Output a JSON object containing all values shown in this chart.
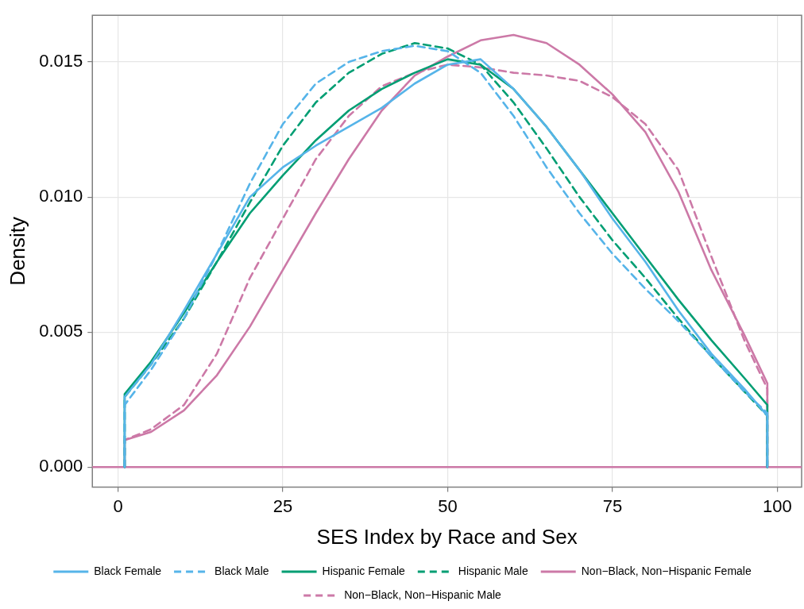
{
  "chart_data": {
    "type": "line",
    "xlabel": "SES Index by Race and Sex",
    "ylabel": "Density",
    "x": [
      1,
      1,
      5,
      10,
      15,
      20,
      25,
      30,
      35,
      40,
      45,
      50,
      55,
      60,
      65,
      70,
      75,
      80,
      85,
      90,
      95,
      98.5,
      98.5
    ],
    "ref_lines": [
      {
        "axis": "y",
        "value": 0,
        "color": "#cc79a7"
      }
    ],
    "xlim": [
      -3.9,
      103.7
    ],
    "xticks": [
      0,
      25,
      50,
      75,
      100
    ],
    "ylim": [
      -0.00074,
      0.01673
    ],
    "yticks": [
      {
        "value": 0,
        "label": "0.000"
      },
      {
        "value": 0.005,
        "label": "0.005"
      },
      {
        "value": 0.01,
        "label": "0.010"
      },
      {
        "value": 0.015,
        "label": "0.015"
      }
    ],
    "grid": true,
    "legend": "bottom",
    "marker": "none",
    "series": [
      {
        "name": "Black Female",
        "color": "#56b4e9",
        "line_style": "solid",
        "values": [
          0,
          0.0026,
          0.0038,
          0.0058,
          0.0079,
          0.01,
          0.0111,
          0.0119,
          0.0126,
          0.0133,
          0.0142,
          0.0149,
          0.0151,
          0.014,
          0.0126,
          0.011,
          0.0092,
          0.0076,
          0.0058,
          0.0042,
          0.0029,
          0.0019,
          0
        ]
      },
      {
        "name": "Black Male",
        "color": "#56b4e9",
        "line_style": "dashed",
        "values": [
          0,
          0.0023,
          0.0036,
          0.0055,
          0.0079,
          0.0105,
          0.0127,
          0.0142,
          0.015,
          0.0154,
          0.0156,
          0.0154,
          0.0146,
          0.013,
          0.0111,
          0.0094,
          0.0079,
          0.0066,
          0.0054,
          0.0041,
          0.0028,
          0.002,
          0
        ]
      },
      {
        "name": "Hispanic Female",
        "color": "#009e73",
        "line_style": "solid",
        "values": [
          0,
          0.0027,
          0.0039,
          0.0057,
          0.0076,
          0.0094,
          0.0108,
          0.0121,
          0.0132,
          0.014,
          0.0146,
          0.0151,
          0.0149,
          0.014,
          0.0126,
          0.011,
          0.0094,
          0.0078,
          0.0062,
          0.0047,
          0.0033,
          0.0023,
          0
        ]
      },
      {
        "name": "Hispanic Male",
        "color": "#009e73",
        "line_style": "dashed",
        "values": [
          0,
          0.0026,
          0.0038,
          0.0055,
          0.0076,
          0.0098,
          0.0119,
          0.0135,
          0.0146,
          0.0153,
          0.0157,
          0.0155,
          0.0149,
          0.0135,
          0.0118,
          0.01,
          0.0084,
          0.007,
          0.0055,
          0.0041,
          0.0028,
          0.0019,
          0
        ]
      },
      {
        "name": "Non−Black, Non−Hispanic Female",
        "color": "#cc79a7",
        "line_style": "solid",
        "values": [
          0,
          0.001,
          0.0013,
          0.0021,
          0.0034,
          0.0052,
          0.0073,
          0.0094,
          0.0114,
          0.0132,
          0.0145,
          0.0152,
          0.0158,
          0.016,
          0.0157,
          0.0149,
          0.0138,
          0.0124,
          0.0102,
          0.0073,
          0.0049,
          0.0031,
          0
        ]
      },
      {
        "name": "Non−Black, Non−Hispanic Male",
        "color": "#cc79a7",
        "line_style": "dashed",
        "values": [
          0,
          0.001,
          0.0014,
          0.0023,
          0.0042,
          0.007,
          0.0092,
          0.0114,
          0.013,
          0.0141,
          0.0146,
          0.0149,
          0.0148,
          0.0146,
          0.0145,
          0.0143,
          0.0137,
          0.0127,
          0.011,
          0.0078,
          0.0047,
          0.0029,
          0
        ]
      }
    ]
  }
}
